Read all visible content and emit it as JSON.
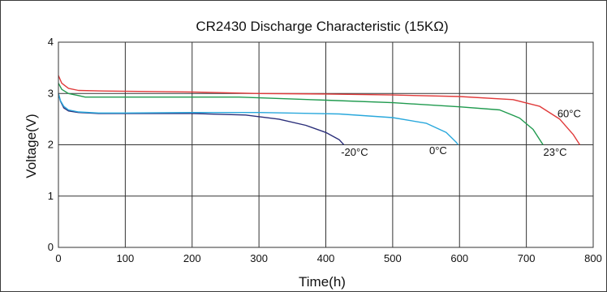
{
  "chart_data": {
    "type": "line",
    "title": "CR2430 Discharge Characteristic (15KΩ)",
    "xlabel": "Time(h)",
    "ylabel": "Voltage(V)",
    "xlim": [
      0,
      800
    ],
    "ylim": [
      0,
      4
    ],
    "xticks": [
      "0",
      "100",
      "200",
      "300",
      "400",
      "500",
      "600",
      "700",
      "800"
    ],
    "yticks": [
      "0",
      "1",
      "2",
      "3",
      "4"
    ],
    "grid": true,
    "series": [
      {
        "name": "-20°C",
        "color": "#2b2f7a",
        "points": [
          [
            0,
            3.0
          ],
          [
            3,
            2.85
          ],
          [
            8,
            2.72
          ],
          [
            15,
            2.66
          ],
          [
            30,
            2.63
          ],
          [
            60,
            2.61
          ],
          [
            100,
            2.61
          ],
          [
            200,
            2.61
          ],
          [
            280,
            2.58
          ],
          [
            330,
            2.5
          ],
          [
            370,
            2.38
          ],
          [
            400,
            2.24
          ],
          [
            420,
            2.1
          ],
          [
            427,
            2.0
          ]
        ]
      },
      {
        "name": "0°C",
        "color": "#29a8dc",
        "points": [
          [
            0,
            3.0
          ],
          [
            3,
            2.86
          ],
          [
            8,
            2.75
          ],
          [
            15,
            2.68
          ],
          [
            30,
            2.64
          ],
          [
            60,
            2.62
          ],
          [
            100,
            2.62
          ],
          [
            200,
            2.63
          ],
          [
            300,
            2.63
          ],
          [
            420,
            2.6
          ],
          [
            500,
            2.53
          ],
          [
            550,
            2.42
          ],
          [
            580,
            2.24
          ],
          [
            595,
            2.05
          ],
          [
            598,
            2.0
          ]
        ]
      },
      {
        "name": "23°C",
        "color": "#1f9a4e",
        "points": [
          [
            0,
            3.2
          ],
          [
            5,
            3.08
          ],
          [
            15,
            3.0
          ],
          [
            30,
            2.96
          ],
          [
            40,
            2.93
          ],
          [
            100,
            2.93
          ],
          [
            200,
            2.93
          ],
          [
            270,
            2.93
          ],
          [
            400,
            2.87
          ],
          [
            500,
            2.82
          ],
          [
            600,
            2.74
          ],
          [
            660,
            2.68
          ],
          [
            690,
            2.52
          ],
          [
            710,
            2.3
          ],
          [
            725,
            2.0
          ]
        ]
      },
      {
        "name": "60°C",
        "color": "#e03a3a",
        "points": [
          [
            0,
            3.35
          ],
          [
            5,
            3.2
          ],
          [
            15,
            3.1
          ],
          [
            30,
            3.06
          ],
          [
            60,
            3.05
          ],
          [
            200,
            3.03
          ],
          [
            300,
            3.0
          ],
          [
            400,
            2.99
          ],
          [
            500,
            2.97
          ],
          [
            600,
            2.94
          ],
          [
            680,
            2.88
          ],
          [
            720,
            2.75
          ],
          [
            750,
            2.5
          ],
          [
            770,
            2.2
          ],
          [
            780,
            2.0
          ]
        ]
      }
    ],
    "annotations": [
      {
        "text": "-20°C",
        "x": 443,
        "y": 1.85
      },
      {
        "text": "0°C",
        "x": 568,
        "y": 1.88
      },
      {
        "text": "23°C",
        "x": 743,
        "y": 1.85
      },
      {
        "text": "60°C",
        "x": 764,
        "y": 2.6
      }
    ]
  }
}
